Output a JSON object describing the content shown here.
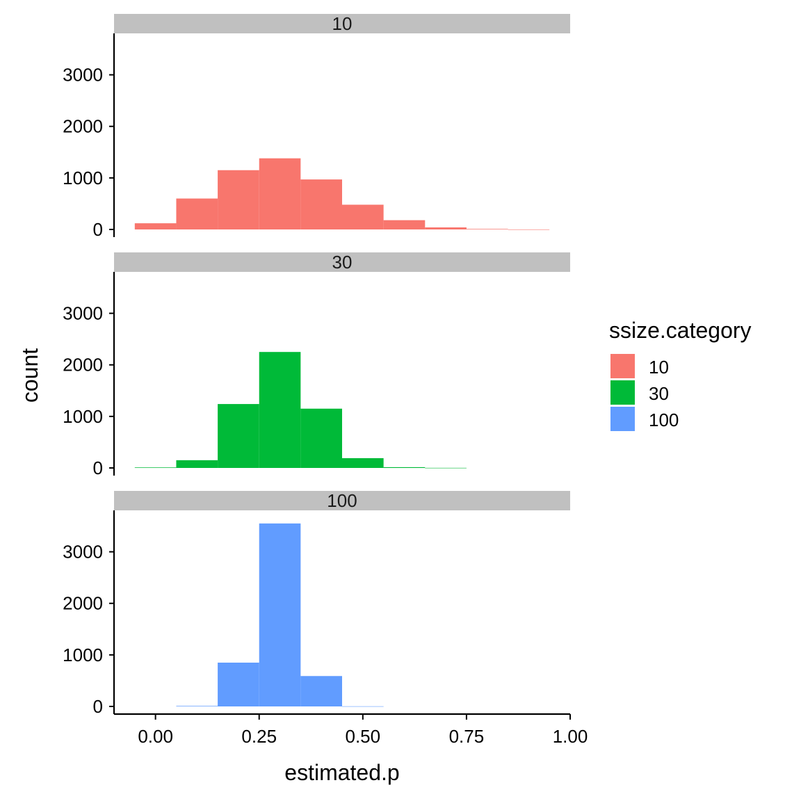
{
  "chart_data": {
    "type": "bar",
    "subtype": "faceted-histogram",
    "xlabel": "estimated.p",
    "ylabel": "count",
    "xlim": [
      -0.1,
      1.0
    ],
    "ylim": [
      0,
      3750
    ],
    "xticks": [
      0.0,
      0.25,
      0.5,
      0.75,
      1.0
    ],
    "xtick_labels": [
      "0.00",
      "0.25",
      "0.50",
      "0.75",
      "1.00"
    ],
    "yticks": [
      0,
      1000,
      2000,
      3000
    ],
    "ytick_labels": [
      "0",
      "1000",
      "2000",
      "3000"
    ],
    "bin_width": 0.1,
    "bin_centers": [
      0.0,
      0.1,
      0.2,
      0.3,
      0.4,
      0.5,
      0.6,
      0.7,
      0.8,
      0.9
    ],
    "legend": {
      "title": "ssize.category",
      "placement": "right",
      "entries": [
        {
          "label": "10",
          "color": "#F8766D"
        },
        {
          "label": "30",
          "color": "#00BA38"
        },
        {
          "label": "100",
          "color": "#619CFF"
        }
      ]
    },
    "grid": false,
    "panels": [
      {
        "strip": "10",
        "color": "#F8766D",
        "values": [
          120,
          600,
          1150,
          1380,
          970,
          480,
          180,
          40,
          10,
          1
        ]
      },
      {
        "strip": "30",
        "color": "#00BA38",
        "values": [
          10,
          150,
          1240,
          2250,
          1150,
          190,
          15,
          2,
          0,
          0
        ]
      },
      {
        "strip": "100",
        "color": "#619CFF",
        "values": [
          0,
          10,
          850,
          3550,
          590,
          3,
          0,
          0,
          0,
          0
        ]
      }
    ]
  }
}
